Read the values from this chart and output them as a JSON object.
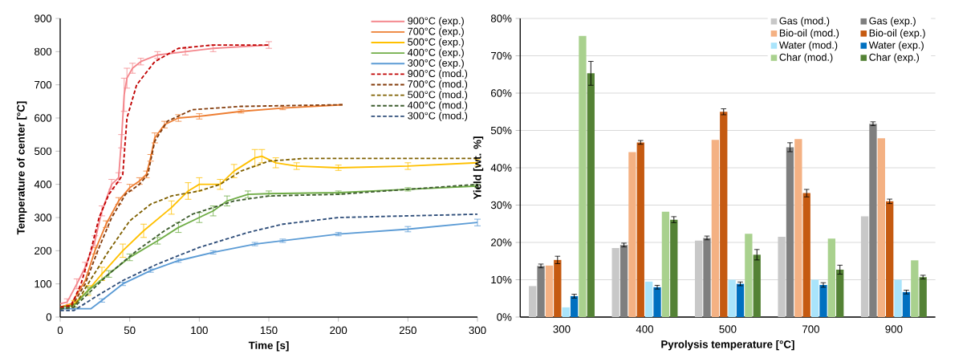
{
  "chart_data": [
    {
      "type": "line",
      "xlabel": "Time [s]",
      "ylabel": "Temperature of center [°C]",
      "xlim": [
        0,
        300
      ],
      "ylim": [
        0,
        900
      ],
      "xticks": [
        0,
        50,
        100,
        150,
        200,
        250,
        300
      ],
      "yticks": [
        0,
        100,
        200,
        300,
        400,
        500,
        600,
        700,
        800,
        900
      ],
      "legend": "top right",
      "series": [
        {
          "name": "900°C (exp.)",
          "color": "#f4868c",
          "line_style": "solid",
          "x": [
            0,
            5,
            12,
            18,
            25,
            30,
            37,
            42,
            44,
            46,
            48,
            52,
            58,
            70,
            90,
            110,
            150
          ],
          "values": [
            40,
            45,
            100,
            150,
            230,
            320,
            400,
            420,
            530,
            670,
            720,
            750,
            770,
            790,
            800,
            810,
            820
          ],
          "errors": [
            null,
            10,
            15,
            15,
            15,
            15,
            15,
            15,
            20,
            50,
            30,
            15,
            10,
            10,
            10,
            10,
            10
          ]
        },
        {
          "name": "700°C (exp.)",
          "color": "#ed7d31",
          "line_style": "solid",
          "x": [
            0,
            8,
            18,
            25,
            33,
            42,
            50,
            57,
            62,
            65,
            68,
            75,
            85,
            100,
            130,
            160,
            203
          ],
          "values": [
            30,
            40,
            110,
            200,
            280,
            350,
            390,
            410,
            430,
            480,
            540,
            580,
            600,
            605,
            620,
            630,
            640
          ],
          "errors": [
            null,
            null,
            null,
            10,
            10,
            10,
            10,
            10,
            10,
            10,
            15,
            10,
            10,
            8,
            5,
            5,
            null
          ]
        },
        {
          "name": "500°C (exp.)",
          "color": "#ffc000",
          "line_style": "solid",
          "x": [
            0,
            10,
            20,
            30,
            45,
            60,
            80,
            92,
            100,
            115,
            125,
            140,
            145,
            155,
            170,
            200,
            250,
            300
          ],
          "values": [
            30,
            40,
            80,
            130,
            200,
            260,
            330,
            380,
            400,
            400,
            440,
            480,
            485,
            465,
            455,
            450,
            455,
            465
          ],
          "errors": [
            null,
            10,
            15,
            20,
            20,
            20,
            20,
            25,
            20,
            15,
            20,
            25,
            20,
            15,
            10,
            8,
            10,
            10
          ]
        },
        {
          "name": "400°C (exp.)",
          "color": "#70ad47",
          "line_style": "solid",
          "x": [
            0,
            10,
            20,
            35,
            50,
            70,
            85,
            100,
            110,
            120,
            135,
            150,
            200,
            250,
            300
          ],
          "values": [
            30,
            35,
            80,
            130,
            180,
            230,
            270,
            300,
            320,
            350,
            370,
            372,
            375,
            385,
            395
          ],
          "errors": [
            null,
            5,
            10,
            10,
            10,
            10,
            15,
            15,
            15,
            15,
            10,
            8,
            5,
            5,
            5
          ]
        },
        {
          "name": "300°C (exp.)",
          "color": "#5b9bd5",
          "line_style": "solid",
          "x": [
            0,
            22,
            30,
            45,
            65,
            85,
            110,
            140,
            160,
            200,
            250,
            300
          ],
          "values": [
            25,
            25,
            50,
            100,
            140,
            170,
            195,
            220,
            230,
            250,
            265,
            285
          ],
          "errors": [
            null,
            null,
            5,
            5,
            5,
            5,
            5,
            5,
            5,
            5,
            8,
            10
          ]
        },
        {
          "name": "900°C (mod.)",
          "color": "#c00000",
          "line_style": "dashed",
          "x": [
            0,
            8,
            15,
            22,
            28,
            35,
            42,
            45,
            48,
            55,
            68,
            85,
            110,
            150
          ],
          "values": [
            30,
            35,
            100,
            200,
            300,
            370,
            410,
            430,
            600,
            700,
            770,
            810,
            820,
            820
          ]
        },
        {
          "name": "700°C (mod.)",
          "color": "#843c0c",
          "line_style": "dashed",
          "x": [
            0,
            8,
            18,
            27,
            37,
            47,
            57,
            63,
            68,
            77,
            95,
            130,
            203
          ],
          "values": [
            25,
            30,
            100,
            200,
            300,
            370,
            400,
            430,
            530,
            590,
            625,
            635,
            640
          ]
        },
        {
          "name": "500°C (mod.)",
          "color": "#7f6000",
          "line_style": "dashed",
          "x": [
            0,
            10,
            20,
            35,
            50,
            65,
            80,
            100,
            115,
            130,
            150,
            175,
            300
          ],
          "values": [
            25,
            30,
            100,
            200,
            290,
            340,
            365,
            380,
            400,
            440,
            470,
            478,
            478
          ]
        },
        {
          "name": "400°C (mod.)",
          "color": "#3d5c2e",
          "line_style": "dashed",
          "x": [
            0,
            10,
            20,
            35,
            55,
            75,
            95,
            110,
            125,
            150,
            200,
            250,
            300
          ],
          "values": [
            25,
            30,
            70,
            130,
            200,
            260,
            310,
            330,
            350,
            365,
            370,
            385,
            400
          ]
        },
        {
          "name": "300°C (mod.)",
          "color": "#2f4e7a",
          "line_style": "dashed",
          "x": [
            0,
            10,
            25,
            45,
            70,
            100,
            135,
            160,
            200,
            250,
            300
          ],
          "values": [
            20,
            20,
            60,
            110,
            160,
            210,
            255,
            280,
            300,
            305,
            310
          ]
        }
      ]
    },
    {
      "type": "bar",
      "xlabel": "Pyrolysis temperature [°C]",
      "ylabel": "Yield [wt. %]",
      "categories": [
        "300",
        "400",
        "500",
        "700",
        "900"
      ],
      "ylim": [
        0,
        80
      ],
      "yticks": [
        {
          "value": 0,
          "label": "0%"
        },
        {
          "value": 10,
          "label": "10%"
        },
        {
          "value": 20,
          "label": "20%"
        },
        {
          "value": 30,
          "label": "30%"
        },
        {
          "value": 40,
          "label": "40%"
        },
        {
          "value": 50,
          "label": "50%"
        },
        {
          "value": 60,
          "label": "60%"
        },
        {
          "value": 70,
          "label": "70%"
        },
        {
          "value": 80,
          "label": "80%"
        }
      ],
      "grid": "y",
      "legend": "top right",
      "series": [
        {
          "name": "Gas (mod.)",
          "color": "#c8c8c8",
          "values": [
            8.3,
            18.5,
            20.5,
            21.5,
            27
          ]
        },
        {
          "name": "Gas (exp.)",
          "color": "#7f7f7f",
          "values": [
            13.7,
            19.3,
            21.2,
            45.5,
            51.8
          ],
          "errors": [
            0.5,
            0.5,
            0.5,
            1.2,
            0.5
          ]
        },
        {
          "name": "Bio-oil (mod.)",
          "color": "#f4b183",
          "values": [
            13.8,
            44.2,
            47.5,
            47.7,
            47.9
          ]
        },
        {
          "name": "Bio-oil (exp.)",
          "color": "#c55a11",
          "values": [
            15.3,
            46.8,
            55,
            33.2,
            31
          ],
          "errors": [
            1,
            0.5,
            0.8,
            1,
            0.6
          ]
        },
        {
          "name": "Water (mod.)",
          "color": "#a9e4fb",
          "values": [
            2.6,
            9.5,
            10,
            10,
            10
          ]
        },
        {
          "name": "Water (exp.)",
          "color": "#0070c0",
          "values": [
            5.6,
            8,
            8.9,
            8.6,
            6.7
          ],
          "errors": [
            0.5,
            0.5,
            0.5,
            0.6,
            0.5
          ]
        },
        {
          "name": "Char (mod.)",
          "color": "#a9d18e",
          "values": [
            75.3,
            28.2,
            22.3,
            21,
            15.2
          ]
        },
        {
          "name": "Char (exp.)",
          "color": "#548235",
          "values": [
            65.3,
            26.1,
            16.7,
            12.7,
            10.7
          ],
          "errors": [
            3.2,
            0.8,
            1.4,
            1.2,
            0.5
          ]
        }
      ]
    }
  ]
}
